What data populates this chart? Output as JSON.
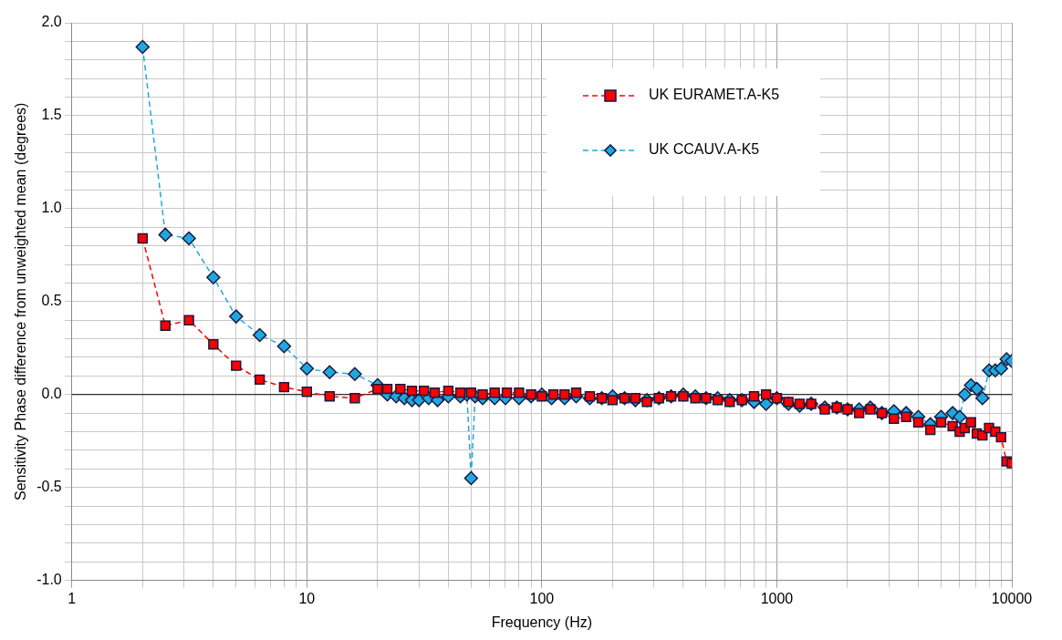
{
  "chart_data": {
    "type": "line",
    "xlabel": "Frequency (Hz)",
    "ylabel": "Sensitivity Phase difference from unweighted mean (degrees)",
    "log": "x",
    "grid": true,
    "legend": "top right",
    "line_style": "dashed",
    "xlim": [
      1,
      10000
    ],
    "xticks": [
      1,
      {
        "value": 2,
        "label": null
      },
      {
        "value": 3,
        "label": null
      },
      {
        "value": 4,
        "label": null
      },
      {
        "value": 5,
        "label": null
      },
      {
        "value": 6,
        "label": null
      },
      {
        "value": 7,
        "label": null
      },
      {
        "value": 8,
        "label": null
      },
      {
        "value": 9,
        "label": null
      },
      10,
      {
        "value": 20,
        "label": null
      },
      {
        "value": 30,
        "label": null
      },
      {
        "value": 40,
        "label": null
      },
      {
        "value": 50,
        "label": null
      },
      {
        "value": 60,
        "label": null
      },
      {
        "value": 70,
        "label": null
      },
      {
        "value": 80,
        "label": null
      },
      {
        "value": 90,
        "label": null
      },
      100,
      {
        "value": 200,
        "label": null
      },
      {
        "value": 300,
        "label": null
      },
      {
        "value": 400,
        "label": null
      },
      {
        "value": 500,
        "label": null
      },
      {
        "value": 600,
        "label": null
      },
      {
        "value": 700,
        "label": null
      },
      {
        "value": 800,
        "label": null
      },
      {
        "value": 900,
        "label": null
      },
      1000,
      {
        "value": 2000,
        "label": null
      },
      {
        "value": 3000,
        "label": null
      },
      {
        "value": 4000,
        "label": null
      },
      {
        "value": 5000,
        "label": null
      },
      {
        "value": 6000,
        "label": null
      },
      {
        "value": 7000,
        "label": null
      },
      {
        "value": 8000,
        "label": null
      },
      {
        "value": 9000,
        "label": null
      },
      10000
    ],
    "ylim": [
      -1,
      2
    ],
    "yticks": [
      {
        "value": -1,
        "label": "-1.0"
      },
      {
        "value": -0.9,
        "label": null
      },
      {
        "value": -0.8,
        "label": null
      },
      {
        "value": -0.7,
        "label": null
      },
      {
        "value": -0.6,
        "label": null
      },
      {
        "value": -0.5,
        "label": "-0.5"
      },
      {
        "value": -0.4,
        "label": null
      },
      {
        "value": -0.3,
        "label": null
      },
      {
        "value": -0.2,
        "label": null
      },
      {
        "value": -0.1,
        "label": null
      },
      {
        "value": 0,
        "label": "0.0"
      },
      {
        "value": 0.1,
        "label": null
      },
      {
        "value": 0.2,
        "label": null
      },
      {
        "value": 0.3,
        "label": null
      },
      {
        "value": 0.4,
        "label": null
      },
      {
        "value": 0.5,
        "label": "0.5"
      },
      {
        "value": 0.6,
        "label": null
      },
      {
        "value": 0.7,
        "label": null
      },
      {
        "value": 0.8,
        "label": null
      },
      {
        "value": 0.9,
        "label": null
      },
      {
        "value": 1,
        "label": "1.0"
      },
      {
        "value": 1.1,
        "label": null
      },
      {
        "value": 1.2,
        "label": null
      },
      {
        "value": 1.3,
        "label": null
      },
      {
        "value": 1.4,
        "label": null
      },
      {
        "value": 1.5,
        "label": "1.5"
      },
      {
        "value": 1.6,
        "label": null
      },
      {
        "value": 1.7,
        "label": null
      },
      {
        "value": 1.8,
        "label": null
      },
      {
        "value": 1.9,
        "label": null
      },
      {
        "value": 2,
        "label": "2.0"
      }
    ],
    "ref_lines": [
      {
        "axis": "y",
        "value": 0,
        "color": "#000000"
      }
    ],
    "series": [
      {
        "name": "UK EURAMET.A-K5",
        "color": "#ff0000",
        "marker": "square",
        "x": [
          2,
          2.5,
          3.15,
          4,
          5,
          6.3,
          8,
          10,
          12.5,
          16,
          20,
          22,
          25,
          28,
          31.5,
          35,
          40,
          45,
          50,
          56,
          63,
          71,
          80,
          90,
          100,
          112,
          125,
          140,
          160,
          180,
          200,
          225,
          250,
          280,
          315,
          355,
          400,
          450,
          500,
          560,
          630,
          710,
          800,
          900,
          1000,
          1120,
          1250,
          1400,
          1600,
          1800,
          2000,
          2240,
          2500,
          2800,
          3150,
          3550,
          4000,
          4500,
          5000,
          5600,
          6000,
          6300,
          6700,
          7100,
          7500,
          8000,
          8500,
          9000,
          9500,
          10000
        ],
        "values": [
          0.84,
          0.37,
          0.4,
          0.27,
          0.155,
          0.08,
          0.04,
          0.015,
          -0.01,
          -0.02,
          0.03,
          0.03,
          0.03,
          0.02,
          0.02,
          0.01,
          0.02,
          0.01,
          0.01,
          0.0,
          0.01,
          0.01,
          0.01,
          0.0,
          -0.01,
          0.0,
          0.0,
          0.01,
          -0.01,
          -0.02,
          -0.03,
          -0.02,
          -0.02,
          -0.04,
          -0.02,
          -0.01,
          -0.01,
          -0.02,
          -0.02,
          -0.03,
          -0.04,
          -0.03,
          -0.01,
          0.0,
          -0.02,
          -0.04,
          -0.05,
          -0.05,
          -0.08,
          -0.07,
          -0.08,
          -0.1,
          -0.08,
          -0.1,
          -0.13,
          -0.12,
          -0.15,
          -0.19,
          -0.15,
          -0.17,
          -0.2,
          -0.18,
          -0.15,
          -0.21,
          -0.22,
          -0.18,
          -0.2,
          -0.23,
          -0.36,
          -0.37
        ]
      },
      {
        "name": "UK CCAUV.A-K5",
        "color": "#1fa8e0",
        "marker": "diamond",
        "x": [
          2,
          2.5,
          3.15,
          4,
          5,
          6.3,
          8,
          10,
          12.5,
          16,
          20,
          22,
          24,
          26,
          28,
          30,
          33,
          36,
          40,
          45,
          48,
          50,
          52,
          56,
          63,
          70,
          80,
          90,
          100,
          110,
          125,
          140,
          160,
          180,
          200,
          225,
          250,
          280,
          315,
          355,
          400,
          450,
          500,
          560,
          630,
          710,
          800,
          900,
          1000,
          1120,
          1250,
          1400,
          1600,
          1800,
          2000,
          2240,
          2500,
          2800,
          3150,
          3550,
          4000,
          4500,
          5000,
          5600,
          6000,
          6300,
          6700,
          7100,
          7500,
          8000,
          8500,
          9000,
          9500,
          10000
        ],
        "values": [
          1.87,
          0.86,
          0.84,
          0.63,
          0.42,
          0.32,
          0.26,
          0.14,
          0.12,
          0.11,
          0.05,
          0.0,
          -0.01,
          -0.02,
          -0.03,
          -0.03,
          -0.02,
          -0.03,
          -0.01,
          -0.01,
          0.0,
          -0.45,
          -0.01,
          -0.02,
          -0.02,
          -0.02,
          -0.02,
          -0.01,
          0.0,
          -0.02,
          -0.02,
          -0.01,
          -0.02,
          -0.02,
          -0.01,
          -0.02,
          -0.03,
          -0.03,
          -0.02,
          -0.01,
          0.0,
          -0.01,
          -0.02,
          -0.02,
          -0.03,
          -0.03,
          -0.04,
          -0.05,
          -0.02,
          -0.05,
          -0.06,
          -0.05,
          -0.07,
          -0.07,
          -0.08,
          -0.08,
          -0.07,
          -0.1,
          -0.09,
          -0.1,
          -0.12,
          -0.16,
          -0.12,
          -0.1,
          -0.12,
          0.0,
          0.05,
          0.03,
          -0.02,
          0.13,
          0.13,
          0.14,
          0.19,
          0.18
        ]
      }
    ]
  }
}
